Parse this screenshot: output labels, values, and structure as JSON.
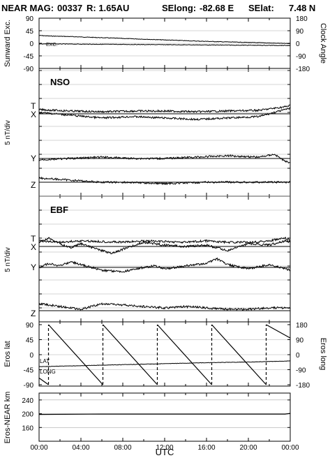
{
  "title": {
    "prefix": "NEAR MAG:",
    "day": "00337",
    "r": "R: 1.65AU",
    "selong": "SElong:",
    "selong_val": "-82.68 E",
    "selat": "SElat:",
    "selat_val": "7.48 N"
  },
  "colors": {
    "line": "#000000",
    "grid": "#aaaaaa",
    "background": "#ffffff"
  },
  "x_axis": {
    "label": "UTC",
    "ticks": [
      "00:00",
      "04:00",
      "08:00",
      "12:00",
      "16:00",
      "20:00",
      "00:00"
    ],
    "range_hours": [
      0,
      24
    ]
  },
  "chart_data": [
    {
      "type": "line",
      "panel": "sunward",
      "ylabel": "Sunward Exc.",
      "ylabel_right": "Clock Angle",
      "yticks_left": [
        "90",
        "45",
        "0",
        "-45",
        "-90"
      ],
      "yticks_right": [
        "180",
        "90",
        "0",
        "-90",
        "-180"
      ],
      "ylim": [
        -90,
        90
      ],
      "trace_label": "EXC.",
      "series": [
        {
          "x": [
            0,
            1,
            3,
            6,
            9,
            12,
            15,
            18,
            21,
            23,
            24
          ],
          "values": [
            28,
            26,
            24,
            20,
            16,
            12,
            8,
            5,
            2,
            0,
            -1
          ]
        },
        {
          "x": [
            0,
            4,
            8,
            12,
            16,
            20,
            24
          ],
          "values": [
            -2,
            -3,
            -4,
            -5,
            -6,
            -7,
            -8
          ]
        }
      ]
    },
    {
      "type": "line",
      "panel": "nso",
      "title": "NSO",
      "ylabel": "5 nT/div",
      "trace_labels": [
        "T",
        "X",
        "Y",
        "Z"
      ],
      "baselines_div": [
        4.6,
        4.6,
        1.4,
        -0.3
      ],
      "series": [
        {
          "name": "T",
          "x": [
            0,
            3,
            6,
            9,
            12,
            15,
            18,
            21,
            23.5,
            24
          ],
          "values": [
            0.3,
            0.2,
            0.15,
            0.2,
            0.2,
            0.15,
            0.2,
            0.25,
            0.5,
            0.6
          ]
        },
        {
          "name": "X",
          "x": [
            0,
            3,
            6,
            9,
            12,
            15,
            18,
            21,
            23.5,
            24
          ],
          "values": [
            0.1,
            -0.1,
            -0.3,
            -0.2,
            -0.3,
            -0.4,
            -0.3,
            -0.2,
            0.3,
            0.4
          ]
        },
        {
          "name": "Y",
          "x": [
            0,
            3,
            6,
            9,
            12,
            15,
            18,
            21,
            22.5,
            23.5,
            24
          ],
          "values": [
            -0.1,
            0.0,
            0.1,
            0.0,
            0.0,
            0.1,
            0.2,
            0.1,
            0.3,
            -0.2,
            -0.3
          ]
        },
        {
          "name": "Z",
          "x": [
            0,
            2,
            4,
            6,
            8,
            12,
            16,
            20,
            24
          ],
          "values": [
            0.3,
            0.2,
            0.1,
            0.0,
            0.0,
            -0.1,
            0.0,
            0.0,
            0.0
          ]
        }
      ]
    },
    {
      "type": "line",
      "panel": "ebf",
      "title": "EBF",
      "ylabel": "5 nT/div",
      "trace_labels": [
        "T",
        "X",
        "Y",
        "Z"
      ],
      "baselines_div": [
        4.1,
        4.1,
        2.6,
        -0.5
      ],
      "series": [
        {
          "name": "T",
          "x": [
            0,
            2,
            4,
            6,
            8,
            10,
            12,
            14,
            16,
            18,
            20,
            22,
            23.5,
            24
          ],
          "values": [
            0.4,
            0.3,
            0.4,
            0.35,
            0.3,
            0.4,
            0.35,
            0.3,
            0.4,
            0.3,
            0.3,
            0.4,
            0.6,
            0.4
          ]
        },
        {
          "name": "X",
          "x": [
            0,
            1,
            2,
            3,
            4,
            6,
            7,
            8,
            10,
            12,
            14,
            16,
            18,
            20,
            22,
            23.5,
            24
          ],
          "values": [
            0.3,
            0.6,
            0.2,
            -0.1,
            0.2,
            -0.3,
            -0.5,
            -0.2,
            0.3,
            0.1,
            0.0,
            0.1,
            -0.3,
            0.2,
            0.1,
            0.4,
            0.3
          ]
        },
        {
          "name": "Y",
          "x": [
            0,
            1,
            2,
            3,
            4,
            6,
            8,
            10,
            11,
            12,
            14,
            16,
            17,
            18,
            20,
            22,
            23,
            24
          ],
          "values": [
            0.0,
            0.3,
            0.1,
            0.4,
            0.2,
            -0.2,
            -0.3,
            0.0,
            0.1,
            -0.1,
            0.1,
            0.3,
            0.6,
            0.2,
            -0.1,
            0.2,
            0.0,
            -0.2
          ]
        },
        {
          "name": "Z",
          "x": [
            0,
            2,
            4,
            6,
            8,
            10,
            12,
            14,
            16,
            18,
            20,
            22,
            24
          ],
          "values": [
            0.5,
            0.3,
            0.1,
            0.5,
            0.4,
            0.3,
            0.2,
            0.3,
            0.2,
            0.1,
            0.1,
            0.2,
            0.2
          ]
        }
      ]
    },
    {
      "type": "line",
      "panel": "eros",
      "ylabel": "Eros lat",
      "ylabel_right": "Eros long",
      "yticks_left": [
        "90",
        "45",
        "0",
        "-45",
        "-90"
      ],
      "yticks_right": [
        "180",
        "90",
        "0",
        "-90",
        "-180"
      ],
      "ylim": [
        -90,
        90
      ],
      "trace_labels": [
        "LAT",
        "LONG"
      ],
      "series": [
        {
          "name": "LAT",
          "x": [
            0,
            4,
            8,
            12,
            16,
            20,
            24
          ],
          "values": [
            -36,
            -33,
            -30,
            -27,
            -24,
            -22,
            -19
          ]
        },
        {
          "name": "LONG",
          "x": [
            0,
            0.9,
            0.9,
            6.1,
            6.1,
            11.3,
            11.3,
            16.5,
            16.5,
            21.7,
            21.7,
            24
          ],
          "values": [
            -140,
            -180,
            180,
            -180,
            180,
            -180,
            180,
            -180,
            180,
            -180,
            180,
            100
          ]
        }
      ]
    },
    {
      "type": "line",
      "panel": "range",
      "ylabel": "Eros-NEAR km",
      "yticks_left": [
        "240",
        "200",
        "160"
      ],
      "ylim": [
        120,
        260
      ],
      "series": [
        {
          "x": [
            0,
            6,
            12,
            18,
            23.5,
            24
          ],
          "values": [
            198,
            199,
            199,
            199,
            199,
            201
          ]
        }
      ]
    }
  ]
}
